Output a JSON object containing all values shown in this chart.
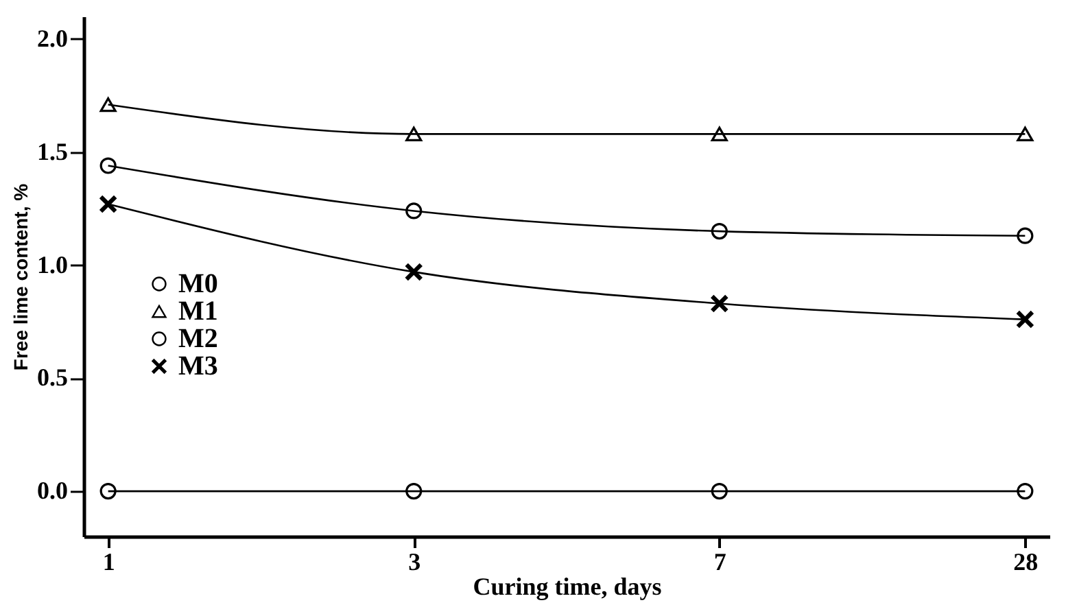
{
  "chart_data": {
    "type": "line",
    "xlabel": "Curing time, days",
    "ylabel": "Free lime content, %",
    "categories": [
      "1",
      "3",
      "7",
      "28"
    ],
    "series": [
      {
        "name": "M0",
        "color": "#000000",
        "marker": "circle",
        "values": [
          0.0,
          0.0,
          0.0,
          0.0
        ]
      },
      {
        "name": "M1",
        "color": "#000000",
        "marker": "triangle",
        "values": [
          1.71,
          1.58,
          1.58,
          1.58
        ]
      },
      {
        "name": "M2",
        "color": "#000000",
        "marker": "circle",
        "values": [
          1.44,
          1.24,
          1.15,
          1.13
        ]
      },
      {
        "name": "M3",
        "color": "#000000",
        "marker": "cross",
        "values": [
          1.27,
          0.97,
          0.83,
          0.76
        ]
      }
    ],
    "ylim": [
      -0.2,
      2.1
    ],
    "yticks": [
      {
        "value": 0,
        "label": "0.0"
      },
      0.5,
      {
        "value": 1,
        "label": "1.0"
      },
      1.5,
      {
        "value": 2,
        "label": "2.0"
      }
    ],
    "grid": false,
    "legend": "left",
    "line_style": "solid"
  }
}
